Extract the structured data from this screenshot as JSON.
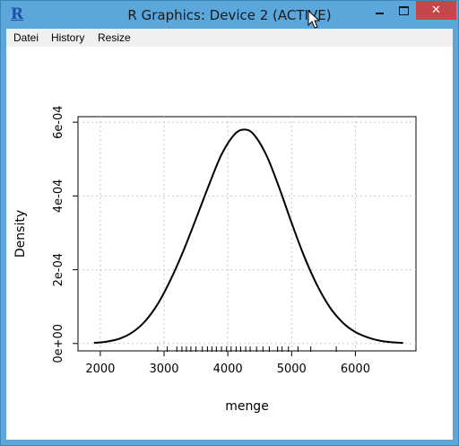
{
  "window": {
    "title": "R Graphics: Device 2 (ACTIVE)",
    "app_icon": "R",
    "minimize_icon": "minimize-icon",
    "maximize_icon": "maximize-icon",
    "close_icon": "close-icon",
    "close_glyph": "✕"
  },
  "menu": {
    "items": [
      "Datei",
      "History",
      "Resize"
    ]
  },
  "colors": {
    "titlebar": "#5ba7dc",
    "close_button": "#c7464a",
    "curve": "#000000"
  },
  "chart_data": {
    "type": "line",
    "xlabel": "menge",
    "ylabel": "Density",
    "xlim": [
      1650,
      6950
    ],
    "ylim": [
      -2e-05,
      0.000615
    ],
    "x_ticks": [
      2000,
      3000,
      4000,
      5000,
      6000
    ],
    "y_ticks": [
      0,
      0.0002,
      0.0004,
      0.0006
    ],
    "y_tick_labels": [
      "0e+00",
      "2e-04",
      "4e-04",
      "6e-04"
    ],
    "grid": true,
    "series": [
      {
        "x": [
          1900,
          2100,
          2300,
          2500,
          2700,
          2900,
          3100,
          3300,
          3500,
          3700,
          3900,
          4100,
          4250,
          4400,
          4600,
          4800,
          5000,
          5200,
          5400,
          5600,
          5800,
          6000,
          6200,
          6400,
          6600,
          6750
        ],
        "y": [
          1.5e-06,
          5e-06,
          1.3e-05,
          3e-05,
          6e-05,
          0.000107,
          0.000172,
          0.00025,
          0.000338,
          0.000428,
          0.000512,
          0.000566,
          0.00058,
          0.000568,
          0.000512,
          0.000425,
          0.000327,
          0.000235,
          0.000158,
          9.8e-05,
          5.7e-05,
          3.1e-05,
          1.6e-05,
          7e-06,
          3e-06,
          1.5e-06
        ]
      }
    ],
    "rug": [
      2900,
      3050,
      3200,
      3280,
      3350,
      3420,
      3500,
      3600,
      3680,
      3750,
      3820,
      3900,
      3980,
      4050,
      4130,
      4200,
      4280,
      4350,
      4450,
      4550,
      4650,
      4780,
      4850,
      4950,
      5100,
      5300,
      5700
    ]
  }
}
